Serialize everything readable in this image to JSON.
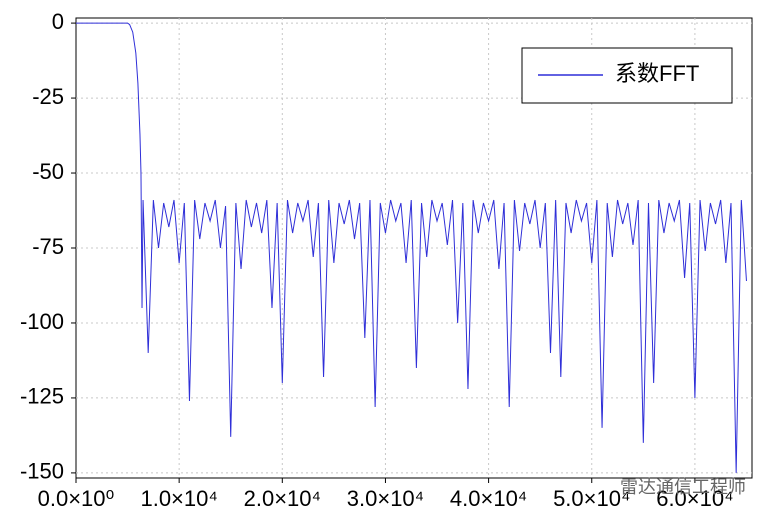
{
  "chart_data": {
    "type": "line",
    "annotation": "雷达通信工程师",
    "x": [
      0,
      1000,
      2000,
      3000,
      4000,
      5000,
      5200,
      5500,
      5800,
      6000,
      6200,
      6300,
      6400,
      6500,
      7000,
      7500,
      8000,
      8500,
      9000,
      9500,
      10000,
      10500,
      11000,
      11500,
      12000,
      12500,
      13000,
      13500,
      14000,
      14500,
      15000,
      15500,
      16000,
      16500,
      17000,
      17500,
      18000,
      18500,
      19000,
      19500,
      20000,
      20500,
      21000,
      21500,
      22000,
      22500,
      23000,
      23500,
      24000,
      24500,
      25000,
      25500,
      26000,
      26500,
      27000,
      27500,
      28000,
      28500,
      29000,
      29500,
      30000,
      30500,
      31000,
      31500,
      32000,
      32500,
      33000,
      33500,
      34000,
      34500,
      35000,
      35500,
      36000,
      36500,
      37000,
      37500,
      38000,
      38500,
      39000,
      39500,
      40000,
      40500,
      41000,
      41500,
      42000,
      42500,
      43000,
      43500,
      44000,
      44500,
      45000,
      45500,
      46000,
      46500,
      47000,
      47500,
      48000,
      48500,
      49000,
      49500,
      50000,
      50500,
      51000,
      51500,
      52000,
      52500,
      53000,
      53500,
      54000,
      54500,
      55000,
      55500,
      56000,
      56500,
      57000,
      57500,
      58000,
      58500,
      59000,
      59500,
      60000,
      60500,
      61000,
      61500,
      62000,
      62500,
      63000,
      63500,
      64000,
      64500,
      65000
    ],
    "series": [
      {
        "name": "系数FFT",
        "color": "#2f2fd8",
        "values": [
          0,
          0,
          0,
          0,
          0,
          0,
          -0.5,
          -3,
          -10,
          -20,
          -37,
          -50,
          -95,
          -59,
          -110,
          -59,
          -75,
          -60,
          -68,
          -59,
          -80,
          -60,
          -126,
          -59,
          -72,
          -60,
          -66,
          -59,
          -75,
          -61,
          -138,
          -60,
          -82,
          -59,
          -68,
          -60,
          -70,
          -59,
          -95,
          -60,
          -120,
          -59,
          -70,
          -60,
          -66,
          -59,
          -78,
          -60,
          -118,
          -59,
          -80,
          -60,
          -67,
          -59,
          -72,
          -60,
          -105,
          -59,
          -128,
          -60,
          -70,
          -59,
          -66,
          -60,
          -80,
          -59,
          -115,
          -60,
          -78,
          -59,
          -66,
          -60,
          -74,
          -59,
          -100,
          -60,
          -122,
          -59,
          -70,
          -60,
          -66,
          -59,
          -82,
          -60,
          -128,
          -59,
          -76,
          -60,
          -67,
          -59,
          -75,
          -60,
          -110,
          -59,
          -118,
          -60,
          -70,
          -59,
          -66,
          -60,
          -80,
          -59,
          -135,
          -60,
          -78,
          -59,
          -67,
          -60,
          -74,
          -59,
          -140,
          -60,
          -120,
          -59,
          -70,
          -60,
          -66,
          -59,
          -85,
          -60,
          -125,
          -59,
          -76,
          -60,
          -67,
          -59,
          -80,
          -60,
          -150,
          -59,
          -86
        ]
      }
    ],
    "xlim": [
      0,
      65536
    ],
    "xticks": [
      {
        "value": 0,
        "label": "0.0×10⁰"
      },
      {
        "value": 10000,
        "label": "1.0×10⁴"
      },
      {
        "value": 20000,
        "label": "2.0×10⁴"
      },
      {
        "value": 30000,
        "label": "3.0×10⁴"
      },
      {
        "value": 40000,
        "label": "4.0×10⁴"
      },
      {
        "value": 50000,
        "label": "5.0×10⁴"
      },
      {
        "value": 60000,
        "label": "6.0×10⁴"
      }
    ],
    "ylim": [
      -151.7,
      1.7
    ],
    "yticks": [
      0,
      -25,
      -50,
      -75,
      -100,
      -125,
      -150
    ],
    "grid": true,
    "legend": "upper right"
  }
}
